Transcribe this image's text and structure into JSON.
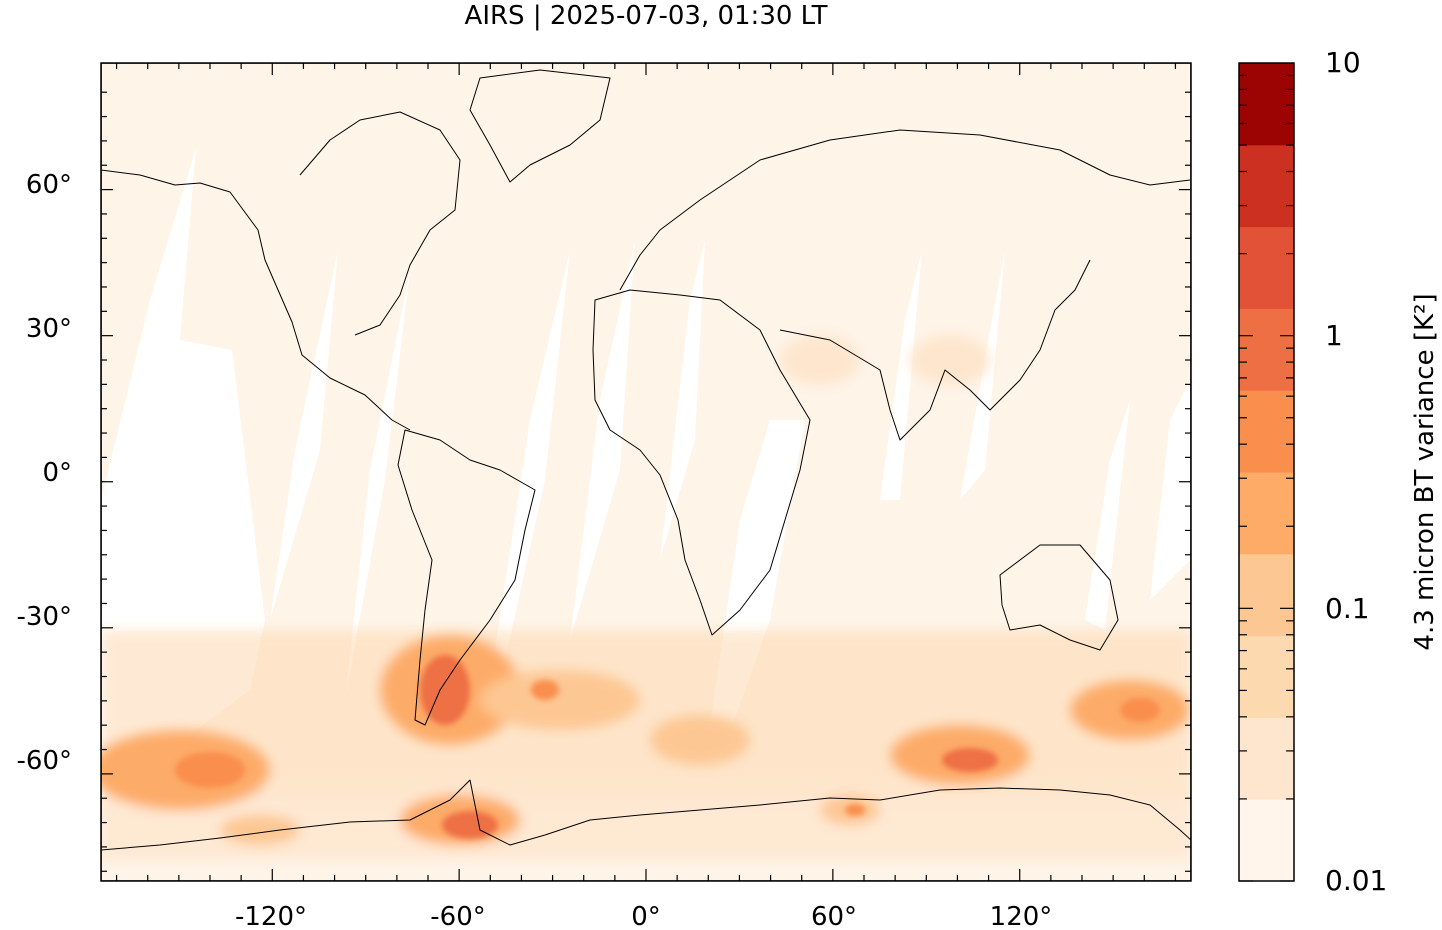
{
  "title": "AIRS | 2025-07-03, 01:30 LT",
  "axes": {
    "x_ticks": [
      "-120°",
      "-60°",
      "0°",
      "60°",
      "120°"
    ],
    "y_ticks": [
      "60°",
      "30°",
      "0°",
      "-30°",
      "-60°"
    ]
  },
  "colorbar": {
    "label": "4.3 micron BT variance [K²]",
    "tick_labels": [
      "10",
      "1",
      "0.1",
      "0.01"
    ],
    "scale": "log",
    "range": [
      0.01,
      10
    ],
    "colors": [
      "#fff5eb",
      "#fee6ce",
      "#fdd9b0",
      "#fdc793",
      "#fdab67",
      "#f98e4d",
      "#ee6f44",
      "#e25237",
      "#cc3020",
      "#9b0403"
    ]
  },
  "chart_data": {
    "type": "heatmap",
    "title": "AIRS | 2025-07-03, 01:30 LT",
    "xlim": [
      -175,
      175
    ],
    "ylim": [
      -82,
      86
    ],
    "x_ticks": [
      -120,
      -60,
      0,
      60,
      120
    ],
    "y_ticks": [
      60,
      30,
      0,
      -30,
      -60
    ],
    "projection": "equirectangular",
    "field": "4.3 micron BT variance",
    "units": "K²",
    "color_scale": "log",
    "color_range": [
      0.01,
      10
    ],
    "hotspots": [
      {
        "lon": -65,
        "lat": -46,
        "value": 1.5
      },
      {
        "lon": -55,
        "lat": -70,
        "value": 1.2
      },
      {
        "lon": -145,
        "lat": -61,
        "value": 0.8
      },
      {
        "lon": 105,
        "lat": -59,
        "value": 1.5
      },
      {
        "lon": 155,
        "lat": -49,
        "value": 0.9
      },
      {
        "lon": -35,
        "lat": -55,
        "value": 1.2
      },
      {
        "lon": 65,
        "lat": -69,
        "value": 0.6
      }
    ]
  }
}
